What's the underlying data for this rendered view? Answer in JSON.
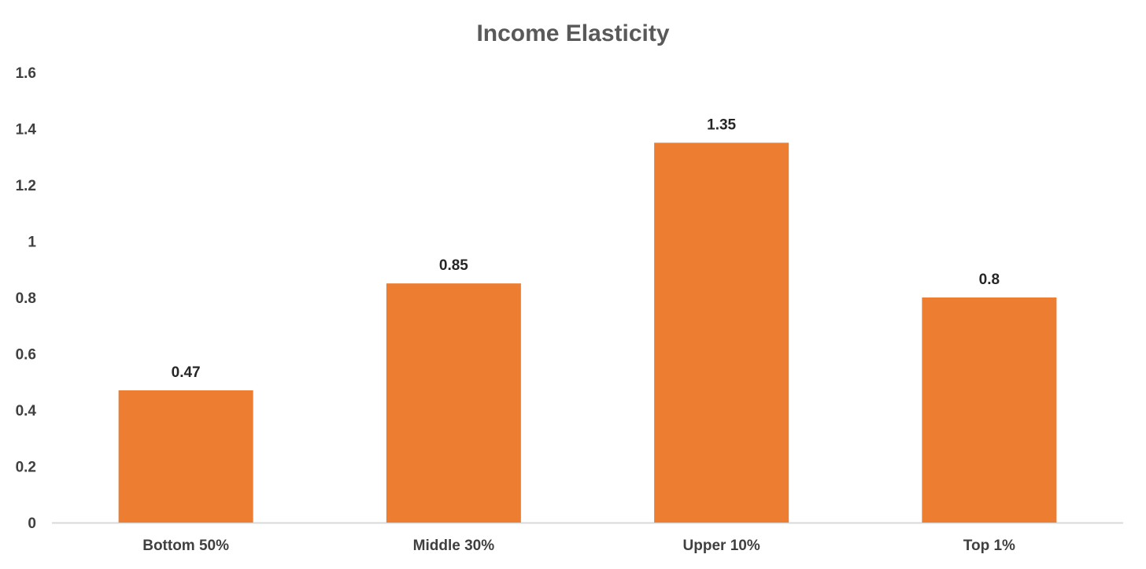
{
  "chart_data": {
    "type": "bar",
    "title": "Income Elasticity",
    "categories": [
      "Bottom 50%",
      "Middle 30%",
      "Upper 10%",
      "Top 1%"
    ],
    "values": [
      0.47,
      0.85,
      1.35,
      0.8
    ],
    "data_labels": [
      "0.47",
      "0.85",
      "1.35",
      "0.8"
    ],
    "ylim": [
      0,
      1.6
    ],
    "yticks": [
      0,
      0.2,
      0.4,
      0.6,
      0.8,
      1,
      1.2,
      1.4,
      1.6
    ],
    "ytick_labels": [
      "0",
      "0.2",
      "0.4",
      "0.6",
      "0.8",
      "1",
      "1.2",
      "1.4",
      "1.6"
    ],
    "grid": false,
    "legend": "none",
    "bar_color": "#ED7D31",
    "axis_color": "#D9D9D9"
  }
}
